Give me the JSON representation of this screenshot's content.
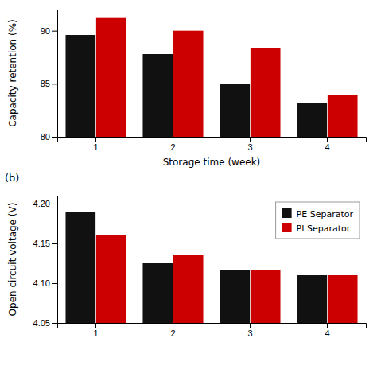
{
  "chart_data": [
    {
      "type": "bar",
      "categories": [
        "1",
        "2",
        "3",
        "4"
      ],
      "series": [
        {
          "color": "#111111",
          "values": [
            89.6,
            87.8,
            85.0,
            83.2
          ]
        },
        {
          "color": "#cc0000",
          "values": [
            91.2,
            90.0,
            88.4,
            83.9
          ]
        }
      ],
      "x_label": "Storage time (week)",
      "y_label": "Capacity retention (%)",
      "ylim": [
        80,
        92
      ],
      "yticks": [
        80,
        85,
        90
      ]
    },
    {
      "type": "bar",
      "categories": [
        "1",
        "2",
        "3",
        "4"
      ],
      "series": [
        {
          "name": "PE Separator",
          "color": "#111111",
          "values": [
            4.189,
            4.125,
            4.116,
            4.11
          ]
        },
        {
          "name": "PI Separator",
          "color": "#cc0000",
          "values": [
            4.16,
            4.136,
            4.116,
            4.11
          ]
        }
      ],
      "y_label": "Open circuit voltage (V)",
      "ylim": [
        4.05,
        4.21
      ],
      "yticks": [
        4.05,
        {
          "value": 4.1,
          "label": "4.10"
        },
        4.15,
        {
          "value": 4.2,
          "label": "4.20"
        }
      ],
      "legend": "upper right",
      "annotation": "(b)"
    }
  ]
}
